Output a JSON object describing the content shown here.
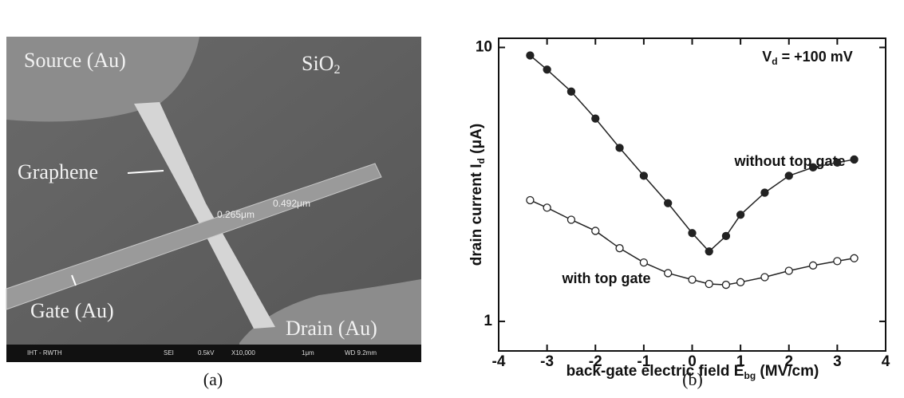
{
  "image_panel": {
    "labels": {
      "source": "Source (Au)",
      "sio2": [
        "SiO",
        "2"
      ],
      "graphene": "Graphene",
      "w1": "0.265μm",
      "w2": "0.492μm",
      "gate": "Gate (Au)",
      "drain": "Drain (Au)"
    },
    "footer": [
      "IHT - RWTH",
      "SEI",
      "0.5kV",
      "X10,000",
      "1μm",
      "WD 9.2mm"
    ],
    "caption": "(a)"
  },
  "chart_data": {
    "type": "line",
    "caption": "(b)",
    "xlabel": [
      "back-gate electric field E",
      "bg",
      " (MV/cm)"
    ],
    "ylabel": [
      "drain current I",
      "d",
      " (μA)"
    ],
    "annotations": {
      "condition": [
        "V",
        "d",
        " = +100 mV"
      ],
      "without": "without top gate",
      "with": "with top gate"
    },
    "x": [
      -3.35,
      -3,
      -2.5,
      -2,
      -1.5,
      -1,
      -0.5,
      0,
      0.35,
      0.7,
      1,
      1.5,
      2,
      2.5,
      3,
      3.35
    ],
    "series": [
      {
        "name": "without top gate",
        "color": "#222222",
        "marker": "filled",
        "values": [
          9.35,
          8.3,
          6.9,
          5.5,
          4.3,
          3.4,
          2.7,
          2.1,
          1.8,
          2.05,
          2.45,
          2.95,
          3.4,
          3.65,
          3.8,
          3.9
        ]
      },
      {
        "name": "with top gate",
        "color": "#222222",
        "marker": "open",
        "values": [
          2.77,
          2.6,
          2.35,
          2.14,
          1.85,
          1.64,
          1.5,
          1.42,
          1.37,
          1.36,
          1.39,
          1.45,
          1.53,
          1.6,
          1.66,
          1.7
        ]
      }
    ],
    "xlim": [
      -4,
      4
    ],
    "xticks": [
      -4,
      -3,
      -2,
      -1,
      0,
      1,
      2,
      3,
      4
    ],
    "ylim": [
      0.78,
      10.8
    ],
    "yticks": [
      1,
      10
    ],
    "log_y": true
  }
}
